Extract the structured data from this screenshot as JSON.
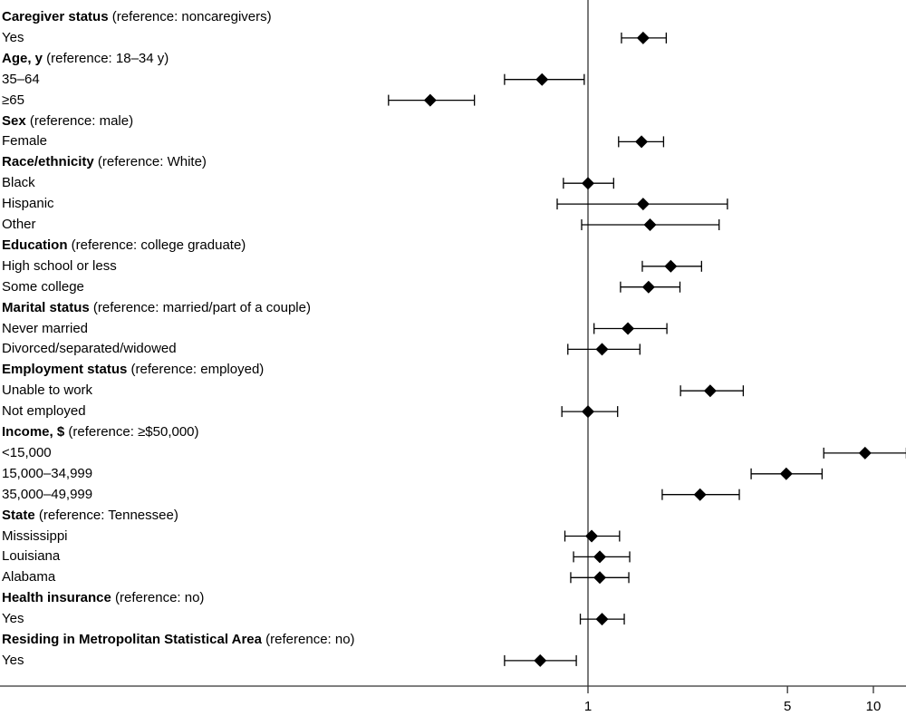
{
  "chart_data": {
    "type": "forest",
    "x_scale": "log",
    "x_ticks": [
      "1",
      "5",
      "10"
    ],
    "x_tick_values": [
      1,
      5,
      10
    ],
    "reference_line": 1,
    "rows": [
      {
        "header": true,
        "title": "Caregiver status",
        "ref": " (reference: noncaregivers)"
      },
      {
        "label": "Yes",
        "or": 1.56,
        "lo": 1.31,
        "hi": 1.88
      },
      {
        "header": true,
        "title": "Age, y",
        "ref": " (reference: 18–34 y)"
      },
      {
        "label": "35–64",
        "or": 0.69,
        "lo": 0.51,
        "hi": 0.97
      },
      {
        "label": "≥65",
        "or": 0.28,
        "lo": 0.2,
        "hi": 0.4
      },
      {
        "header": true,
        "title": "Sex",
        "ref": " (reference: male)"
      },
      {
        "label": "Female",
        "or": 1.54,
        "lo": 1.28,
        "hi": 1.84
      },
      {
        "header": true,
        "title": "Race/ethnicity",
        "ref": " (reference: White)"
      },
      {
        "label": "Black",
        "or": 1.0,
        "lo": 0.82,
        "hi": 1.23
      },
      {
        "label": "Hispanic",
        "or": 1.56,
        "lo": 0.78,
        "hi": 3.08
      },
      {
        "label": "Other",
        "or": 1.65,
        "lo": 0.95,
        "hi": 2.88
      },
      {
        "header": true,
        "title": "Education",
        "ref": " (reference: college graduate)"
      },
      {
        "label": "High school or less",
        "or": 1.95,
        "lo": 1.55,
        "hi": 2.5
      },
      {
        "label": "Some college",
        "or": 1.63,
        "lo": 1.3,
        "hi": 2.1
      },
      {
        "header": true,
        "title": "Marital status",
        "ref": " (reference: married/part of a couple)"
      },
      {
        "label": "Never married",
        "or": 1.38,
        "lo": 1.05,
        "hi": 1.89
      },
      {
        "label": "Divorced/separated/widowed",
        "or": 1.12,
        "lo": 0.85,
        "hi": 1.52
      },
      {
        "header": true,
        "title": "Employment status",
        "ref": " (reference: employed)"
      },
      {
        "label": "Unable to work",
        "or": 2.68,
        "lo": 2.11,
        "hi": 3.5
      },
      {
        "label": "Not employed",
        "or": 1.0,
        "lo": 0.81,
        "hi": 1.27
      },
      {
        "header": true,
        "title": "Income, $",
        "ref": " (reference: ≥$50,000)"
      },
      {
        "label": "<15,000",
        "or": 9.35,
        "lo": 6.7,
        "hi": 13.05
      },
      {
        "label": "15,000–34,999",
        "or": 4.95,
        "lo": 3.73,
        "hi": 6.61
      },
      {
        "label": "35,000–49,999",
        "or": 2.47,
        "lo": 1.82,
        "hi": 3.39
      },
      {
        "header": true,
        "title": "State",
        "ref": " (reference: Tennessee)"
      },
      {
        "label": "Mississippi",
        "or": 1.03,
        "lo": 0.83,
        "hi": 1.29
      },
      {
        "label": "Louisiana",
        "or": 1.1,
        "lo": 0.89,
        "hi": 1.4
      },
      {
        "label": "Alabama",
        "or": 1.1,
        "lo": 0.87,
        "hi": 1.39
      },
      {
        "header": true,
        "title": "Health insurance",
        "ref": " (reference: no)"
      },
      {
        "label": "Yes",
        "or": 1.12,
        "lo": 0.94,
        "hi": 1.34
      },
      {
        "header": true,
        "title": "Residing in Metropolitan Statistical Area",
        "ref": " (reference: no)"
      },
      {
        "label": "Yes",
        "or": 0.68,
        "lo": 0.51,
        "hi": 0.91
      }
    ]
  }
}
